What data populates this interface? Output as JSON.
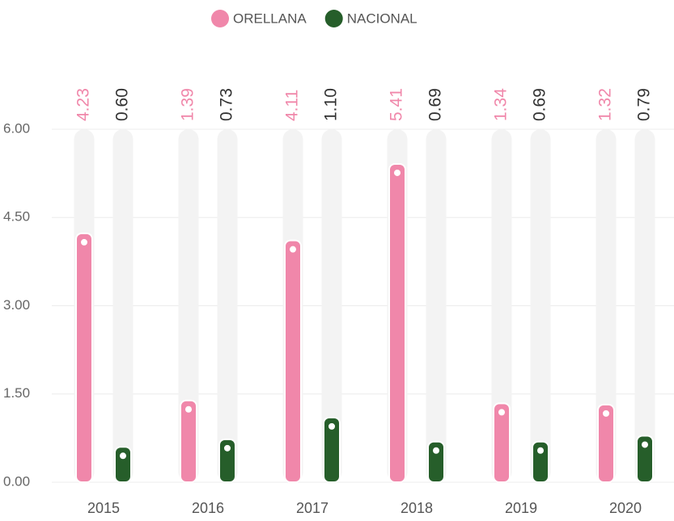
{
  "chart_data": {
    "type": "bar",
    "categories": [
      "2015",
      "2016",
      "2017",
      "2018",
      "2019",
      "2020"
    ],
    "series": [
      {
        "name": "ORELLANA",
        "color": "#f087aa",
        "values": [
          4.23,
          1.39,
          4.11,
          5.41,
          1.34,
          1.32
        ],
        "value_labels": [
          "4.23",
          "1.39",
          "4.11",
          "5.41",
          "1.34",
          "1.32"
        ]
      },
      {
        "name": "NACIONAL",
        "color": "#265e2a",
        "values": [
          0.6,
          0.73,
          1.1,
          0.69,
          0.69,
          0.79
        ],
        "value_labels": [
          "0.60",
          "0.73",
          "1.10",
          "0.69",
          "0.69",
          "0.79"
        ]
      }
    ],
    "ylim": [
      0,
      6
    ],
    "yticks": [
      {
        "value": 0,
        "label": "0.00"
      },
      {
        "value": 1.5,
        "label": "1.50"
      },
      {
        "value": 3,
        "label": "3.00"
      },
      {
        "value": 4.5,
        "label": "4.50"
      },
      {
        "value": 6,
        "label": "6.00"
      }
    ],
    "grid": true,
    "legend": "top"
  }
}
